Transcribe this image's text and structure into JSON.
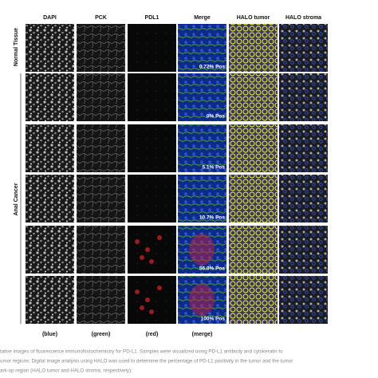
{
  "figure": {
    "columns": [
      "DAPI",
      "PCK",
      "PDL1",
      "Merge",
      "HALO tumor",
      "HALO stroma"
    ],
    "row_groups": [
      "Normal Tissue",
      "Anal Cancer"
    ],
    "positivity": [
      "0.72% Pos",
      "0% Pos",
      "5.1% Pos",
      "10.7% Pos",
      "56.0% Pos",
      "100% Pos"
    ],
    "channel_labels": [
      "(blue)",
      "(green)",
      "(red)",
      "(merge)"
    ]
  },
  "caption": {
    "lines": [
      "tative images of fluorescence immunohistochemistry for PD-L1. Samples were visualized using PD-L1 antibody and cytokeratin to",
      "umor regions. Digital image analysis using HALO was used to determine the percentage of PD-L1 positivity in the tumor and the tumor",
      "ark-up region (HALO tumor and HALO stroma, respectively)."
    ]
  }
}
